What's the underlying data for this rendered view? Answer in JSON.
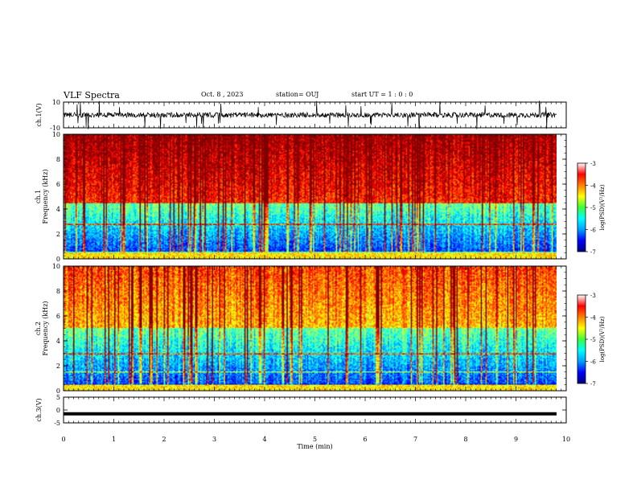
{
  "header": {
    "title": "VLF Spectra",
    "date": "Oct. 8 , 2023",
    "station": "station= OUJ",
    "start": "start UT = 1 : 0 : 0"
  },
  "chart_data": [
    {
      "type": "line",
      "panel": "ch1-waveform",
      "ylabel": "ch.1(V)",
      "ylim": [
        -10,
        10
      ],
      "yticks": [
        "10",
        "-10"
      ],
      "xlim": [
        0,
        10
      ],
      "baseline": 0
    },
    {
      "type": "heatmap",
      "panel": "ch1-spectrogram",
      "ylabel": "ch.1 Frequency (kHz)",
      "ylim": [
        0,
        10
      ],
      "yticks": [
        "0",
        "2",
        "4",
        "6",
        "8",
        "10"
      ],
      "xlim": [
        0,
        10
      ],
      "colorbar": {
        "label": "log(PSD)(V²/Hz)",
        "range": [
          -7,
          -3
        ],
        "ticks": [
          "-3",
          "-4",
          "-5",
          "-6",
          "-7"
        ]
      }
    },
    {
      "type": "heatmap",
      "panel": "ch2-spectrogram",
      "ylabel": "ch.2 Frequency (kHz)",
      "ylim": [
        0,
        10
      ],
      "yticks": [
        "0",
        "2",
        "4",
        "6",
        "8",
        "10"
      ],
      "xlim": [
        0,
        10
      ],
      "colorbar": {
        "label": "log(PSD)(V²/Hz)",
        "range": [
          -7,
          -3
        ],
        "ticks": [
          "-3",
          "-4",
          "-5",
          "-6",
          "-7"
        ]
      }
    },
    {
      "type": "line",
      "panel": "ch3-waveform",
      "ylabel": "ch.3(V)",
      "ylim": [
        -5,
        5
      ],
      "yticks": [
        "5",
        "0",
        "-5"
      ],
      "xlim": [
        0,
        10
      ],
      "baseline": -1.5,
      "xlabel": "Time (min)",
      "xticks": [
        "0",
        "1",
        "2",
        "3",
        "4",
        "5",
        "6",
        "7",
        "8",
        "9",
        "10"
      ]
    }
  ],
  "colors": {
    "cmap": [
      "#00007f",
      "#0000ff",
      "#00a0ff",
      "#00ffff",
      "#3cff3c",
      "#ffff00",
      "#ff8000",
      "#ff0000",
      "#ffffff"
    ]
  }
}
